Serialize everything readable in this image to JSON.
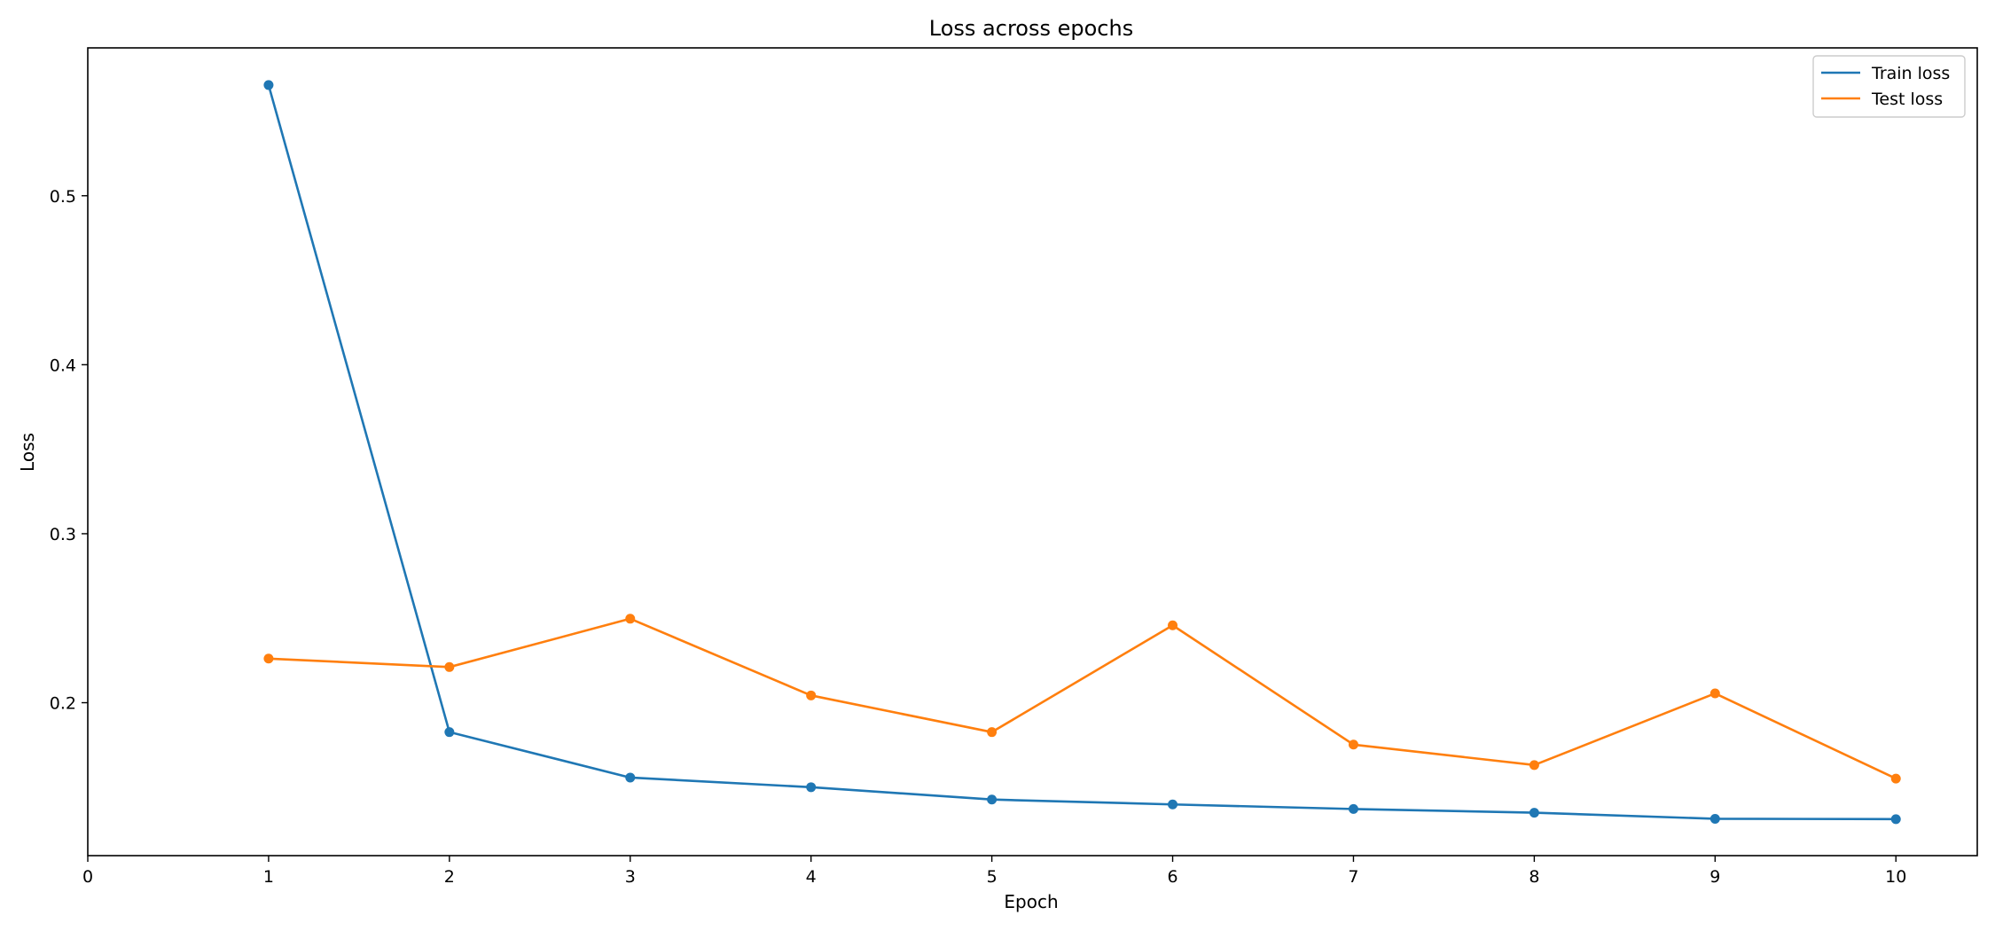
{
  "chart_data": {
    "type": "line",
    "title": "Loss across epochs",
    "xlabel": "Epoch",
    "ylabel": "Loss",
    "xlim": [
      0,
      10.45
    ],
    "ylim": [
      0.1095,
      0.5875
    ],
    "xticks": [
      0,
      1,
      2,
      3,
      4,
      5,
      6,
      7,
      8,
      9,
      10
    ],
    "yticks": [
      0.2,
      0.3,
      0.4,
      0.5
    ],
    "grid": false,
    "legend_position": "top-right",
    "x": [
      1,
      2,
      3,
      4,
      5,
      6,
      7,
      8,
      9,
      10
    ],
    "series": [
      {
        "name": "Train loss",
        "color": "#1f77b4",
        "marker": "circle",
        "values": [
          0.5655,
          0.1826,
          0.1557,
          0.15,
          0.1427,
          0.1398,
          0.1371,
          0.1349,
          0.1313,
          0.1311
        ]
      },
      {
        "name": "Test loss",
        "color": "#ff7f0e",
        "marker": "circle",
        "values": [
          0.2261,
          0.2211,
          0.2497,
          0.2043,
          0.1826,
          0.2458,
          0.1752,
          0.1631,
          0.2055,
          0.1551
        ]
      }
    ]
  }
}
